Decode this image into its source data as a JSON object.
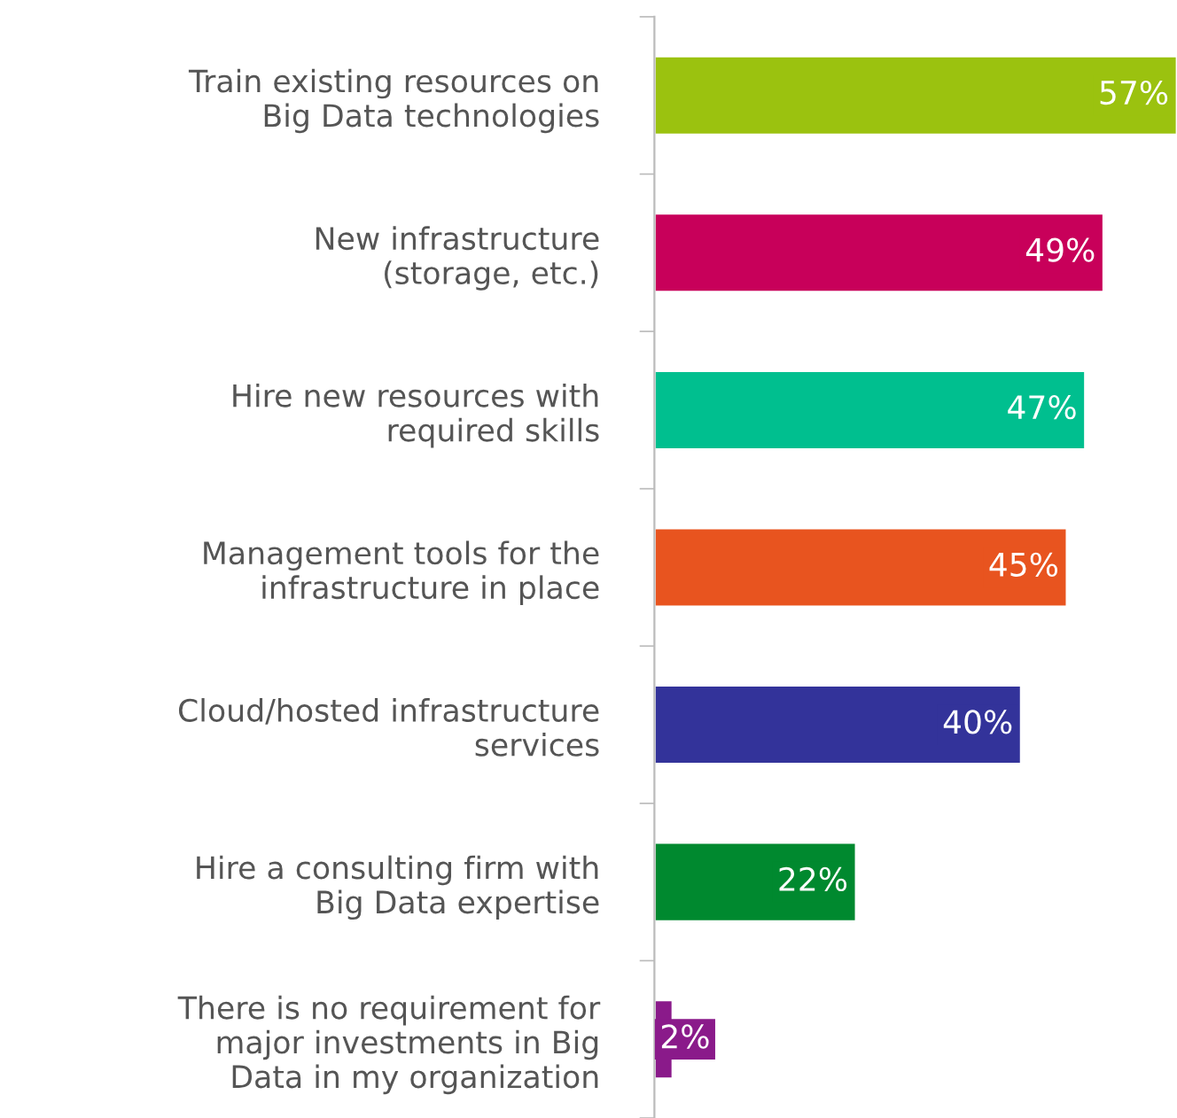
{
  "chart_data": {
    "type": "bar",
    "orientation": "horizontal",
    "grid": false,
    "legend": false,
    "value_labels": [
      "57%",
      "49%",
      "47%",
      "45%",
      "40%",
      "22%",
      "2%"
    ],
    "categories": [
      "Train existing resources on\nBig Data technologies",
      "New infrastructure\n(storage, etc.)",
      "Hire new resources with\nrequired skills",
      "Management tools for the\ninfrastructure in place",
      "Cloud/hosted infrastructure\nservices",
      "Hire a consulting firm with\nBig Data expertise",
      "There is no requirement for\nmajor investments in Big\nData in my organization"
    ],
    "values": [
      57,
      49,
      47,
      45,
      40,
      22,
      2
    ],
    "colors": [
      "#9bc20f",
      "#c8005a",
      "#00bf8f",
      "#e8541f",
      "#33339a",
      "#00892f",
      "#8a1a8a"
    ]
  }
}
